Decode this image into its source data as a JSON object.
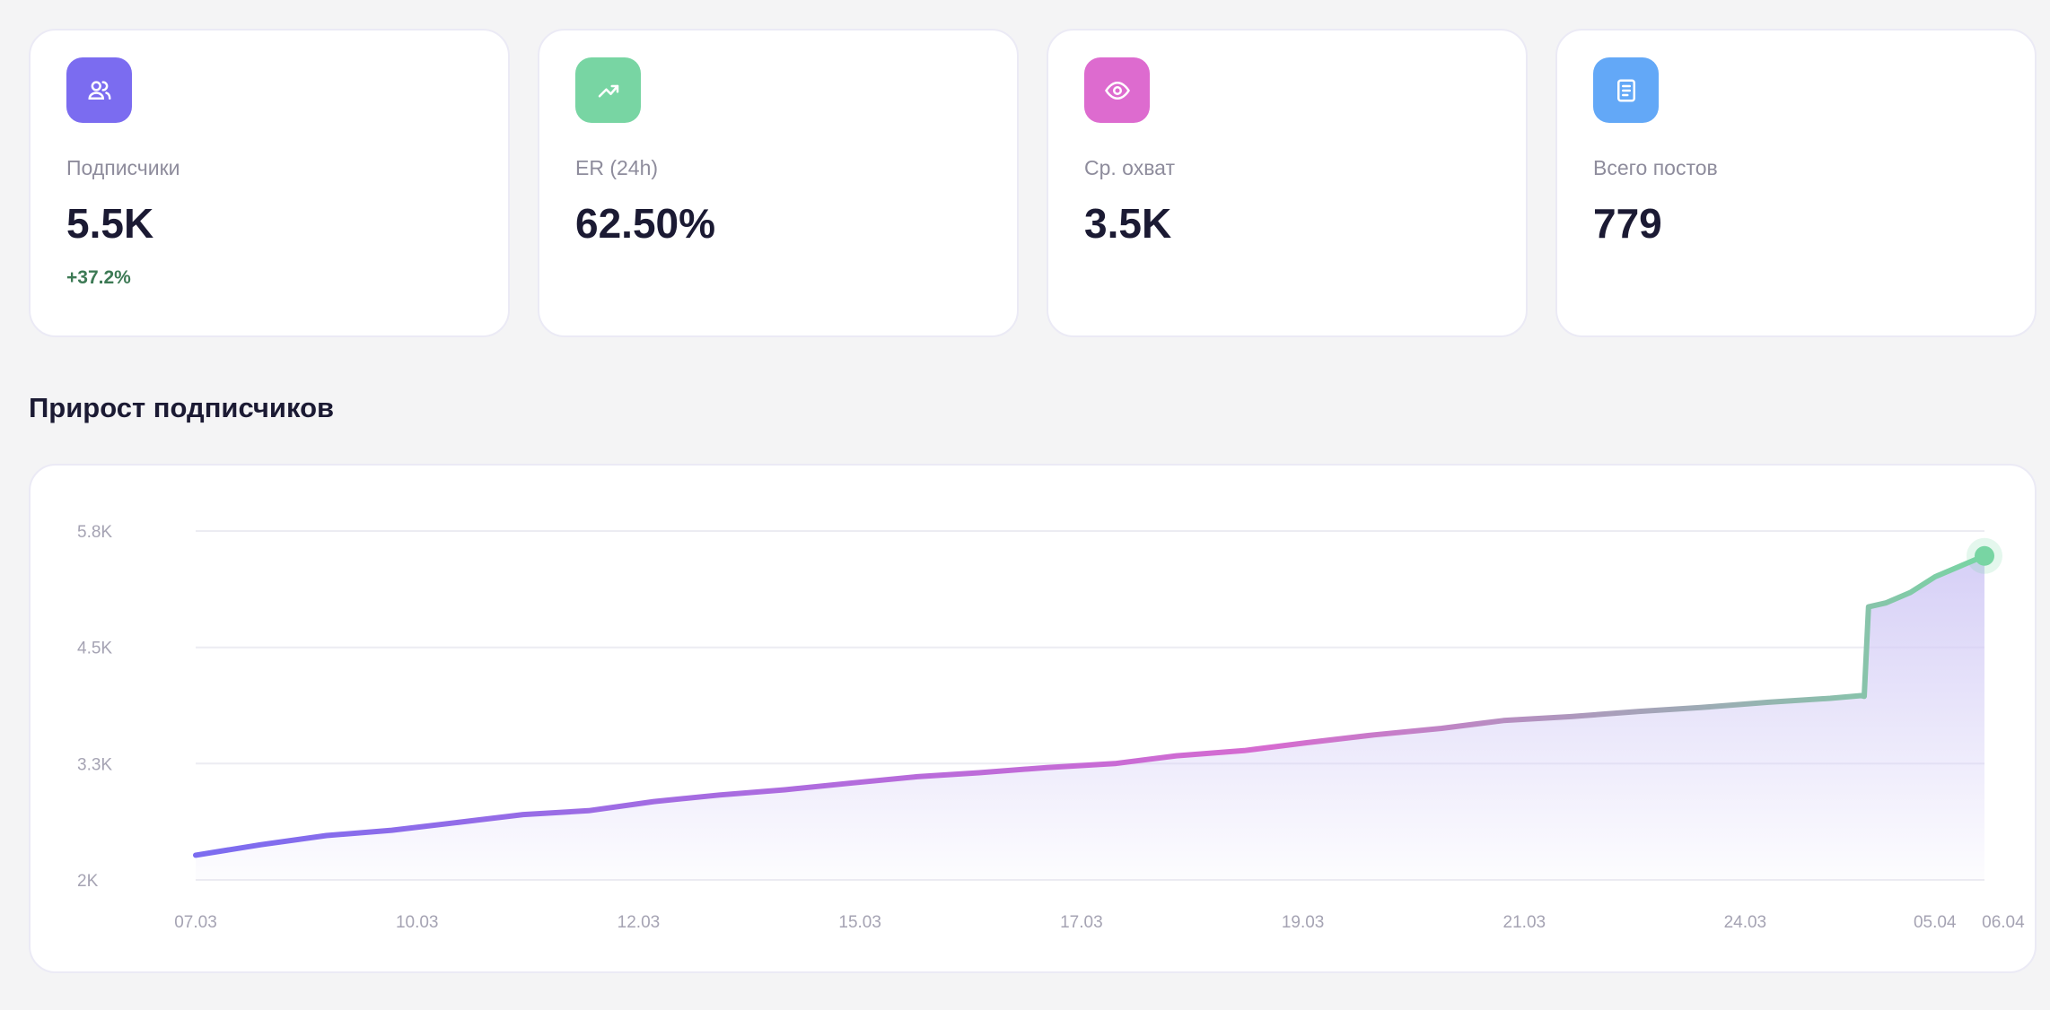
{
  "cards": [
    {
      "label": "Подписчики",
      "value": "5.5K",
      "delta": "+37.2%",
      "icon": "users-icon",
      "color": "#7b6cf0"
    },
    {
      "label": "ER (24h)",
      "value": "62.50%",
      "icon": "trending-up-icon",
      "color": "#78d5a3"
    },
    {
      "label": "Ср. охват",
      "value": "3.5K",
      "icon": "eye-icon",
      "color": "#dd6bcf"
    },
    {
      "label": "Всего постов",
      "value": "779",
      "icon": "document-icon",
      "color": "#63a8f7"
    }
  ],
  "section_title": "Прирост подписчиков",
  "chart_data": {
    "type": "line",
    "title": "Прирост подписчиков",
    "xlabel": "",
    "ylabel": "",
    "ylim": [
      2000,
      5800
    ],
    "xlim": [
      0,
      29
    ],
    "grid": true,
    "y_ticks": [
      {
        "v": 5800,
        "label": "5.8K"
      },
      {
        "v": 4533,
        "label": "4.5K"
      },
      {
        "v": 3267,
        "label": "3.3K"
      },
      {
        "v": 2000,
        "label": "2K"
      }
    ],
    "x_ticks": [
      {
        "v": 0,
        "label": "07.03"
      },
      {
        "v": 3.59,
        "label": "10.03"
      },
      {
        "v": 7.18,
        "label": "12.03"
      },
      {
        "v": 10.77,
        "label": "15.03"
      },
      {
        "v": 14.36,
        "label": "17.03"
      },
      {
        "v": 17.95,
        "label": "19.03"
      },
      {
        "v": 21.54,
        "label": "21.03"
      },
      {
        "v": 25.12,
        "label": "24.03"
      },
      {
        "v": 28.6,
        "label": "05.04"
      },
      {
        "v": 28.9,
        "label": "06.04"
      }
    ],
    "x_unit": "days since 07.03",
    "series": [
      {
        "name": "Подписчики",
        "points": [
          [
            0,
            2270
          ],
          [
            1.06,
            2384
          ],
          [
            2.12,
            2484
          ],
          [
            3.18,
            2541
          ],
          [
            4.25,
            2626
          ],
          [
            5.31,
            2712
          ],
          [
            6.37,
            2754
          ],
          [
            7.43,
            2854
          ],
          [
            8.49,
            2925
          ],
          [
            9.55,
            2982
          ],
          [
            10.6,
            3053
          ],
          [
            11.7,
            3124
          ],
          [
            12.7,
            3167
          ],
          [
            13.8,
            3224
          ],
          [
            14.9,
            3267
          ],
          [
            15.9,
            3352
          ],
          [
            17.0,
            3409
          ],
          [
            18.0,
            3494
          ],
          [
            19.1,
            3580
          ],
          [
            20.2,
            3651
          ],
          [
            21.2,
            3736
          ],
          [
            22.3,
            3779
          ],
          [
            23.4,
            3836
          ],
          [
            24.4,
            3878
          ],
          [
            25.5,
            3935
          ],
          [
            26.5,
            3978
          ],
          [
            27.0,
            4007
          ],
          [
            27.05,
            4000
          ],
          [
            27.12,
            4974
          ],
          [
            27.4,
            5017
          ],
          [
            27.8,
            5131
          ],
          [
            28.2,
            5302
          ],
          [
            28.7,
            5444
          ],
          [
            29,
            5529
          ]
        ]
      }
    ],
    "colors": {
      "start": "#7b6cf0",
      "mid": "#d66bd0",
      "end": "#78d5a3",
      "fill": "#d9d4f7"
    }
  }
}
